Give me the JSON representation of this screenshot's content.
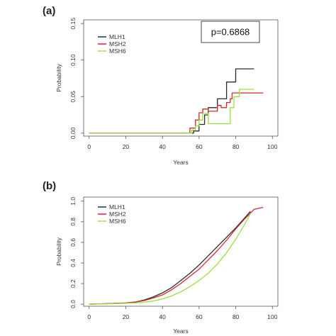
{
  "chart_data": [
    {
      "panel": "(a)",
      "type": "line",
      "step": true,
      "xlabel": "Years",
      "ylabel": "Probability",
      "xlim": [
        -3,
        103
      ],
      "ylim": [
        -0.004,
        0.155
      ],
      "xticks": [
        0,
        20,
        40,
        60,
        80,
        100
      ],
      "yticks": [
        0.0,
        0.05,
        0.1,
        0.15
      ],
      "ytick_labels": [
        "0.00",
        "0.05",
        "0.10",
        "0.15"
      ],
      "legend_position": "top-left",
      "annotation": "p=0.6868",
      "series": [
        {
          "name": "MLH1",
          "color": "#2b2b2b",
          "x": [
            0,
            55,
            57,
            60,
            63,
            65,
            68,
            70,
            72,
            75,
            80,
            90
          ],
          "y": [
            0.0,
            0.0,
            0.003,
            0.012,
            0.025,
            0.035,
            0.035,
            0.047,
            0.047,
            0.07,
            0.088,
            0.088
          ]
        },
        {
          "name": "MSH2",
          "color": "#d6282e",
          "x": [
            0,
            53,
            55,
            58,
            60,
            62,
            65,
            68,
            70,
            72,
            75,
            77,
            78,
            95
          ],
          "y": [
            0.0,
            0.0,
            0.007,
            0.018,
            0.028,
            0.033,
            0.03,
            0.03,
            0.038,
            0.035,
            0.042,
            0.047,
            0.055,
            0.055
          ]
        },
        {
          "name": "MSH6",
          "color": "#9adf3c",
          "x": [
            0,
            54,
            56,
            58,
            60,
            62,
            65,
            70,
            74,
            77,
            79,
            82,
            90
          ],
          "y": [
            0.0,
            0.0,
            0.004,
            0.01,
            0.018,
            0.027,
            0.013,
            0.013,
            0.013,
            0.035,
            0.05,
            0.06,
            0.06
          ]
        }
      ]
    },
    {
      "panel": "(b)",
      "type": "line",
      "step": false,
      "xlabel": "Years",
      "ylabel": "Probability",
      "xlim": [
        -3,
        103
      ],
      "ylim": [
        -0.02,
        1.04
      ],
      "xticks": [
        0,
        20,
        40,
        60,
        80,
        100
      ],
      "yticks": [
        0.0,
        0.2,
        0.4,
        0.6,
        0.8,
        1.0
      ],
      "ytick_labels": [
        "0.0",
        "0.2",
        "0.4",
        "0.6",
        "0.8",
        "1.0"
      ],
      "legend_position": "top-left",
      "series": [
        {
          "name": "MLH1",
          "color": "#2b2b2b",
          "x": [
            0,
            10,
            20,
            25,
            30,
            35,
            40,
            45,
            50,
            55,
            60,
            65,
            70,
            75,
            80,
            85,
            88
          ],
          "y": [
            0.0,
            0.005,
            0.012,
            0.02,
            0.04,
            0.07,
            0.11,
            0.16,
            0.23,
            0.3,
            0.38,
            0.47,
            0.56,
            0.65,
            0.74,
            0.84,
            0.9
          ]
        },
        {
          "name": "MSH2",
          "color": "#d6282e",
          "x": [
            0,
            10,
            20,
            25,
            30,
            35,
            40,
            45,
            50,
            55,
            60,
            65,
            70,
            75,
            80,
            85,
            90,
            95
          ],
          "y": [
            0.0,
            0.005,
            0.012,
            0.02,
            0.035,
            0.06,
            0.09,
            0.14,
            0.2,
            0.27,
            0.34,
            0.43,
            0.52,
            0.62,
            0.73,
            0.83,
            0.92,
            0.94
          ]
        },
        {
          "name": "MSH6",
          "color": "#9adf3c",
          "x": [
            0,
            10,
            20,
            25,
            30,
            35,
            40,
            45,
            50,
            55,
            60,
            65,
            70,
            75,
            80,
            85,
            88
          ],
          "y": [
            0.0,
            0.003,
            0.008,
            0.012,
            0.02,
            0.03,
            0.05,
            0.08,
            0.12,
            0.17,
            0.23,
            0.3,
            0.39,
            0.5,
            0.63,
            0.78,
            0.88
          ]
        }
      ]
    }
  ]
}
